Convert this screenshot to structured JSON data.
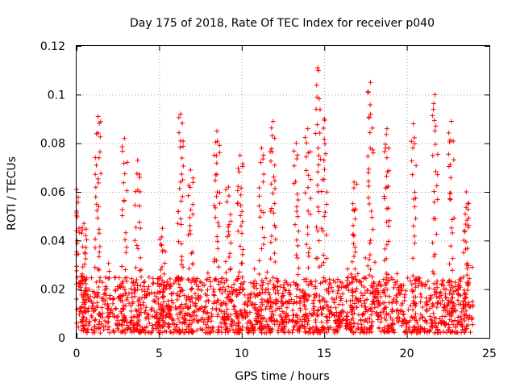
{
  "chart_data": {
    "type": "scatter",
    "title": "Day 175 of 2018, Rate Of TEC Index for receiver p040",
    "xlabel": "GPS time / hours",
    "ylabel": "ROTI / TECUs",
    "xlim": [
      0,
      25
    ],
    "ylim": [
      0,
      0.12
    ],
    "x_ticks": [
      0,
      5,
      10,
      15,
      20,
      25
    ],
    "x_tick_labels": [
      "0",
      "5",
      "10",
      "15",
      "20",
      "25"
    ],
    "y_ticks": [
      0,
      0.02,
      0.04,
      0.06,
      0.08,
      0.1,
      0.12
    ],
    "y_tick_labels": [
      "0",
      "0.02",
      "0.04",
      "0.06",
      "0.08",
      "0.1",
      "0.12"
    ],
    "grid": true,
    "marker": "+",
    "marker_color": "#ff0000",
    "series": [
      {
        "name": "ROTI",
        "baseline_samples": {
          "x_range_hours": [
            0,
            24
          ],
          "point_count": 1900,
          "typical_range": [
            0.002,
            0.025
          ]
        },
        "peaks": [
          {
            "x": 0.0,
            "y": 0.061
          },
          {
            "x": 0.45,
            "y": 0.047
          },
          {
            "x": 1.3,
            "y": 0.091
          },
          {
            "x": 2.9,
            "y": 0.082
          },
          {
            "x": 3.7,
            "y": 0.073
          },
          {
            "x": 5.2,
            "y": 0.045
          },
          {
            "x": 6.3,
            "y": 0.092
          },
          {
            "x": 6.9,
            "y": 0.069
          },
          {
            "x": 8.5,
            "y": 0.085
          },
          {
            "x": 9.2,
            "y": 0.062
          },
          {
            "x": 9.9,
            "y": 0.075
          },
          {
            "x": 11.2,
            "y": 0.078
          },
          {
            "x": 11.9,
            "y": 0.089
          },
          {
            "x": 13.3,
            "y": 0.08
          },
          {
            "x": 14.0,
            "y": 0.086
          },
          {
            "x": 14.6,
            "y": 0.111
          },
          {
            "x": 15.0,
            "y": 0.09
          },
          {
            "x": 16.8,
            "y": 0.064
          },
          {
            "x": 17.8,
            "y": 0.105
          },
          {
            "x": 18.8,
            "y": 0.086
          },
          {
            "x": 20.4,
            "y": 0.088
          },
          {
            "x": 21.7,
            "y": 0.1
          },
          {
            "x": 22.7,
            "y": 0.089
          },
          {
            "x": 23.6,
            "y": 0.06
          }
        ]
      }
    ]
  }
}
